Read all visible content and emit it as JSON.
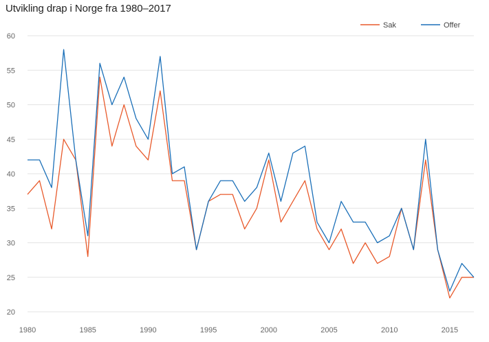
{
  "title": "Utvikling drap i Norge fra 1980–2017",
  "colors": {
    "sak": "#e8592a",
    "offer": "#1a6fb8",
    "grid": "#e3e3e3"
  },
  "chart_data": {
    "type": "line",
    "title": "Utvikling drap i Norge fra 1980–2017",
    "xlabel": "",
    "ylabel": "",
    "x": [
      1980,
      1981,
      1982,
      1983,
      1984,
      1985,
      1986,
      1987,
      1988,
      1989,
      1990,
      1991,
      1992,
      1993,
      1994,
      1995,
      1996,
      1997,
      1998,
      1999,
      2000,
      2001,
      2002,
      2003,
      2004,
      2005,
      2006,
      2007,
      2008,
      2009,
      2010,
      2011,
      2012,
      2013,
      2014,
      2015,
      2016,
      2017
    ],
    "xticks": [
      "1980",
      "1985",
      "1990",
      "1995",
      "2000",
      "2005",
      "2010",
      "2015"
    ],
    "yticks": [
      "20",
      "25",
      "30",
      "35",
      "40",
      "45",
      "50",
      "55",
      "60"
    ],
    "ylim": [
      20,
      60
    ],
    "grid": true,
    "legend": "top-right",
    "series": [
      {
        "name": "Sak",
        "values": [
          37,
          39,
          32,
          45,
          42,
          28,
          54,
          44,
          50,
          44,
          42,
          52,
          39,
          39,
          29,
          36,
          37,
          37,
          32,
          35,
          42,
          33,
          36,
          39,
          32,
          29,
          32,
          27,
          30,
          27,
          28,
          35,
          29,
          42,
          29,
          22,
          25,
          25
        ]
      },
      {
        "name": "Offer",
        "values": [
          42,
          42,
          38,
          58,
          42,
          31,
          56,
          50,
          54,
          48,
          45,
          57,
          40,
          41,
          29,
          36,
          39,
          39,
          36,
          38,
          43,
          36,
          43,
          44,
          33,
          30,
          36,
          33,
          33,
          30,
          31,
          35,
          29,
          45,
          29,
          23,
          27,
          25
        ]
      }
    ]
  }
}
